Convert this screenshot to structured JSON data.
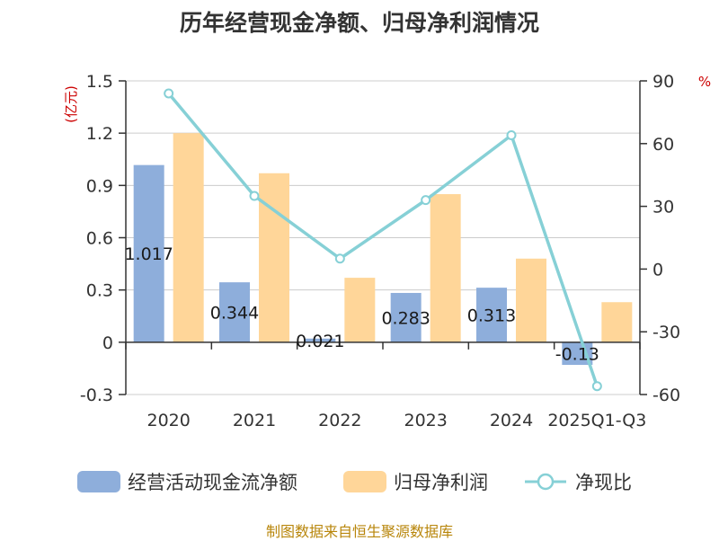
{
  "title": "历年经营现金净额、归母净利润情况",
  "footer": "制图数据来自恒生聚源数据库",
  "legend": {
    "cash_flow": "经营活动现金流净额",
    "net_profit": "归母净利润",
    "ratio": "净现比"
  },
  "colors": {
    "cash_flow": "#8eaedb",
    "net_profit": "#ffd699",
    "ratio": "#86d0d6",
    "unit_text": "#cc0000",
    "footer_text": "#b8860b"
  },
  "chart_data": {
    "type": "bar",
    "categories": [
      "2020",
      "2021",
      "2022",
      "2023",
      "2024",
      "2025Q1-Q3"
    ],
    "series": [
      {
        "name": "经营活动现金流净额",
        "type": "bar",
        "axis": "left",
        "values": [
          1.017,
          0.344,
          0.021,
          0.283,
          0.313,
          -0.13
        ],
        "labels": [
          "1.017",
          "0.344",
          "0.021",
          "0.283",
          "0.313",
          "-0.13"
        ]
      },
      {
        "name": "归母净利润",
        "type": "bar",
        "axis": "left",
        "values": [
          1.2,
          0.97,
          0.37,
          0.85,
          0.48,
          0.23
        ]
      },
      {
        "name": "净现比",
        "type": "line",
        "axis": "right",
        "values": [
          84,
          35,
          5,
          33,
          64,
          -56
        ]
      }
    ],
    "left_axis": {
      "unit": "(亿元)",
      "ticks": [
        "1.5",
        "1.2",
        "0.9",
        "0.6",
        "0.3",
        "0",
        "-0.3"
      ],
      "min": -0.3,
      "max": 1.5
    },
    "right_axis": {
      "unit": "%",
      "ticks": [
        "90",
        "60",
        "30",
        "0",
        "-30",
        "-60"
      ],
      "min": -60,
      "max": 90
    },
    "grid": true,
    "legend_position": "bottom"
  }
}
